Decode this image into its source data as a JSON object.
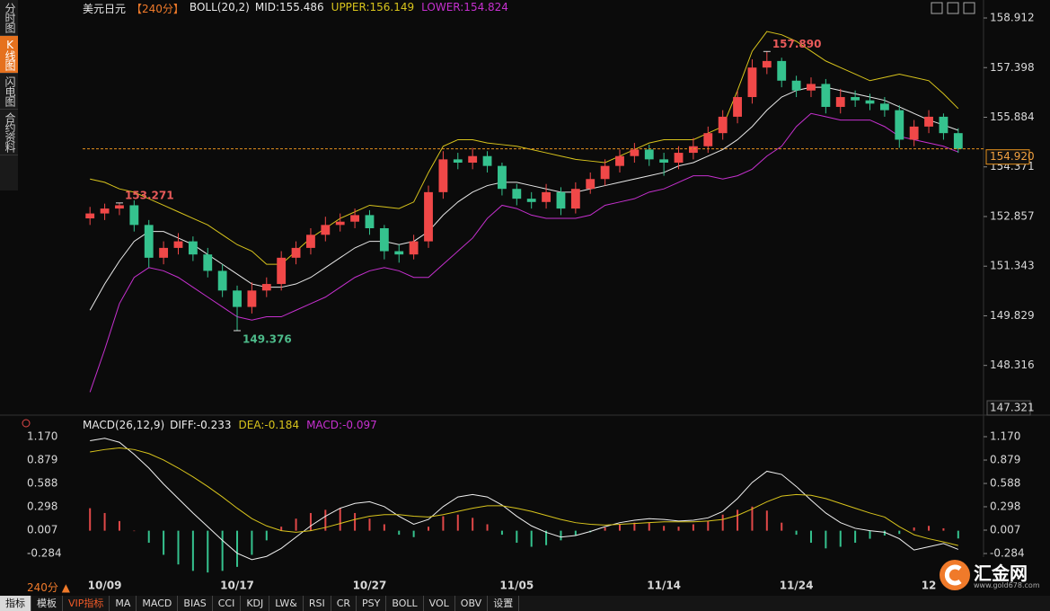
{
  "sidebar": {
    "tabs": [
      "分时图",
      "K线图",
      "闪电图",
      "合约资料"
    ]
  },
  "chart_data": [
    {
      "type": "candlestick",
      "title": "美元日元",
      "period": "【240分】",
      "indicator": "BOLL(20,2)",
      "categories": [
        null,
        "10/09",
        null,
        null,
        null,
        null,
        null,
        null,
        null,
        null,
        "10/17",
        null,
        null,
        null,
        null,
        null,
        null,
        null,
        null,
        "10/27",
        null,
        null,
        null,
        null,
        null,
        null,
        null,
        null,
        null,
        "11/05",
        null,
        null,
        null,
        null,
        null,
        null,
        null,
        null,
        null,
        "11/14",
        null,
        null,
        null,
        null,
        null,
        null,
        null,
        null,
        "11/24",
        null,
        null,
        null,
        null,
        null,
        null,
        null,
        null,
        "12",
        null,
        null
      ],
      "open": [
        152.8,
        152.95,
        153.1,
        153.2,
        152.6,
        151.6,
        151.9,
        152.1,
        151.7,
        151.2,
        150.6,
        150.1,
        150.6,
        150.8,
        151.6,
        151.9,
        152.3,
        152.6,
        152.7,
        152.9,
        152.5,
        151.8,
        151.7,
        152.1,
        153.6,
        154.6,
        154.5,
        154.7,
        154.4,
        153.7,
        153.4,
        153.3,
        153.6,
        153.1,
        153.7,
        154.0,
        154.4,
        154.7,
        154.9,
        154.6,
        154.5,
        154.8,
        155.0,
        155.4,
        155.9,
        156.5,
        157.4,
        157.6,
        157.0,
        156.7,
        156.9,
        156.2,
        156.5,
        156.4,
        156.3,
        156.1,
        155.2,
        155.6,
        155.9,
        155.4
      ],
      "high": [
        153.15,
        153.25,
        153.271,
        153.35,
        152.75,
        152.1,
        152.35,
        152.25,
        151.9,
        151.4,
        150.75,
        150.85,
        151.0,
        151.8,
        152.1,
        152.5,
        152.85,
        152.95,
        153.1,
        153.05,
        152.6,
        152.0,
        152.3,
        153.8,
        154.85,
        154.8,
        154.95,
        154.85,
        154.5,
        153.85,
        153.6,
        153.85,
        153.75,
        153.9,
        154.2,
        154.6,
        154.9,
        155.1,
        155.05,
        154.8,
        155.0,
        155.25,
        155.6,
        156.1,
        156.7,
        157.65,
        157.89,
        157.7,
        157.15,
        157.1,
        157.05,
        156.75,
        156.7,
        156.6,
        156.5,
        156.25,
        155.8,
        156.1,
        156.0,
        155.55
      ],
      "low": [
        152.6,
        152.75,
        152.9,
        152.4,
        151.3,
        151.4,
        151.7,
        151.5,
        151.0,
        150.4,
        149.376,
        149.9,
        150.4,
        150.6,
        151.4,
        151.7,
        152.1,
        152.4,
        152.5,
        152.3,
        151.55,
        151.45,
        151.55,
        151.9,
        153.4,
        154.3,
        154.3,
        154.2,
        153.5,
        153.2,
        153.1,
        153.1,
        152.9,
        152.95,
        153.55,
        153.8,
        154.2,
        154.5,
        154.4,
        154.1,
        154.3,
        154.6,
        154.8,
        155.2,
        155.7,
        156.3,
        157.2,
        156.8,
        156.5,
        156.5,
        156.0,
        156.0,
        156.2,
        156.1,
        155.9,
        154.95,
        155.0,
        155.4,
        155.2,
        154.8
      ],
      "close": [
        152.95,
        153.1,
        153.2,
        152.6,
        151.6,
        151.9,
        152.1,
        151.7,
        151.2,
        150.6,
        150.1,
        150.6,
        150.8,
        151.6,
        151.9,
        152.3,
        152.6,
        152.7,
        152.9,
        152.5,
        151.8,
        151.7,
        152.1,
        153.6,
        154.6,
        154.5,
        154.7,
        154.4,
        153.7,
        153.4,
        153.3,
        153.6,
        153.1,
        153.7,
        154.0,
        154.4,
        154.7,
        154.9,
        154.6,
        154.5,
        154.8,
        155.0,
        155.4,
        155.9,
        156.5,
        157.4,
        157.6,
        157.0,
        156.7,
        156.9,
        156.2,
        156.5,
        156.4,
        156.3,
        156.1,
        155.2,
        155.6,
        155.9,
        155.4,
        154.92
      ],
      "up_color": "#f04848",
      "down_color": "#35c28e",
      "series": [
        {
          "label": "MID:155.486",
          "color": "#e8e8e8",
          "values": [
            150.0,
            150.8,
            151.5,
            152.1,
            152.4,
            152.4,
            152.2,
            152.0,
            151.7,
            151.4,
            151.1,
            150.8,
            150.7,
            150.7,
            150.8,
            151.0,
            151.3,
            151.6,
            151.9,
            152.1,
            152.1,
            152.0,
            152.1,
            152.4,
            152.9,
            153.3,
            153.6,
            153.8,
            153.9,
            153.9,
            153.8,
            153.7,
            153.6,
            153.6,
            153.7,
            153.8,
            153.9,
            154.0,
            154.1,
            154.2,
            154.4,
            154.5,
            154.7,
            154.9,
            155.2,
            155.6,
            156.1,
            156.5,
            156.7,
            156.8,
            156.8,
            156.7,
            156.6,
            156.5,
            156.4,
            156.2,
            156.0,
            155.8,
            155.65,
            155.486
          ]
        },
        {
          "label": "UPPER:156.149",
          "color": "#d8c41c",
          "values": [
            154.0,
            153.9,
            153.7,
            153.6,
            153.4,
            153.2,
            153.0,
            152.8,
            152.6,
            152.3,
            152.0,
            151.8,
            151.4,
            151.4,
            151.8,
            152.2,
            152.5,
            152.8,
            153.0,
            153.2,
            153.15,
            153.1,
            153.3,
            154.2,
            155.0,
            155.2,
            155.2,
            155.1,
            155.05,
            155.0,
            154.9,
            154.8,
            154.7,
            154.6,
            154.55,
            154.5,
            154.7,
            154.9,
            155.1,
            155.2,
            155.2,
            155.2,
            155.4,
            155.6,
            156.7,
            157.9,
            158.5,
            158.4,
            158.2,
            157.9,
            157.6,
            157.4,
            157.2,
            157.0,
            157.1,
            157.2,
            157.1,
            157.0,
            156.6,
            156.149
          ]
        },
        {
          "label": "LOWER:154.824",
          "color": "#c630cf",
          "values": [
            147.5,
            148.8,
            150.2,
            151.0,
            151.3,
            151.2,
            151.0,
            150.7,
            150.4,
            150.1,
            149.8,
            149.7,
            149.8,
            149.8,
            150.0,
            150.2,
            150.4,
            150.7,
            151.0,
            151.2,
            151.3,
            151.2,
            151.0,
            151.0,
            151.4,
            151.8,
            152.2,
            152.8,
            153.2,
            153.1,
            152.9,
            152.8,
            152.8,
            152.8,
            152.9,
            153.2,
            153.3,
            153.4,
            153.6,
            153.7,
            153.9,
            154.1,
            154.1,
            154.0,
            154.1,
            154.3,
            154.7,
            155.0,
            155.6,
            156.0,
            155.9,
            155.8,
            155.8,
            155.8,
            155.6,
            155.3,
            155.2,
            155.1,
            155.0,
            154.824
          ]
        }
      ],
      "ylim": [
        147.321,
        158.912
      ],
      "yticks": [
        158.912,
        157.398,
        155.884,
        154.371,
        152.857,
        151.343,
        149.829,
        148.316
      ],
      "last_price": {
        "value": 154.92,
        "label": "154.920"
      },
      "annotations": [
        {
          "value": 153.271,
          "label": "153.271"
        },
        {
          "value": 157.89,
          "label": "157.890"
        },
        {
          "value": 149.376,
          "label": "149.376"
        }
      ]
    },
    {
      "type": "macd",
      "title": "MACD(26,12,9)",
      "series": [
        {
          "label": "DIFF:-0.233",
          "color": "#f0f0f0",
          "values": [
            1.12,
            1.15,
            1.1,
            0.95,
            0.78,
            0.58,
            0.4,
            0.22,
            0.05,
            -0.12,
            -0.28,
            -0.36,
            -0.32,
            -0.22,
            -0.08,
            0.06,
            0.18,
            0.28,
            0.34,
            0.36,
            0.3,
            0.18,
            0.08,
            0.14,
            0.3,
            0.42,
            0.45,
            0.42,
            0.32,
            0.18,
            0.06,
            -0.02,
            -0.08,
            -0.06,
            -0.01,
            0.05,
            0.1,
            0.13,
            0.15,
            0.14,
            0.12,
            0.13,
            0.16,
            0.24,
            0.4,
            0.6,
            0.74,
            0.7,
            0.55,
            0.38,
            0.22,
            0.1,
            0.03,
            0.0,
            -0.02,
            -0.1,
            -0.24,
            -0.2,
            -0.16,
            -0.233
          ]
        },
        {
          "label": "DEA:-0.184",
          "color": "#d8c41c",
          "values": [
            0.98,
            1.01,
            1.03,
            1.01,
            0.96,
            0.88,
            0.78,
            0.67,
            0.55,
            0.42,
            0.28,
            0.15,
            0.06,
            0.0,
            -0.02,
            0.0,
            0.04,
            0.09,
            0.14,
            0.18,
            0.2,
            0.2,
            0.18,
            0.17,
            0.2,
            0.24,
            0.28,
            0.31,
            0.31,
            0.28,
            0.24,
            0.19,
            0.14,
            0.1,
            0.08,
            0.07,
            0.08,
            0.09,
            0.1,
            0.11,
            0.11,
            0.11,
            0.12,
            0.14,
            0.19,
            0.27,
            0.36,
            0.43,
            0.45,
            0.44,
            0.4,
            0.34,
            0.28,
            0.22,
            0.17,
            0.05,
            -0.05,
            -0.1,
            -0.14,
            -0.184
          ]
        }
      ],
      "histogram": {
        "label": "MACD:-0.097",
        "color": "#c630cf",
        "up_color": "#e04848",
        "down_color": "#35c28e",
        "values": [
          0.28,
          0.22,
          0.12,
          0.0,
          -0.15,
          -0.3,
          -0.42,
          -0.5,
          -0.52,
          -0.5,
          -0.45,
          -0.3,
          -0.12,
          0.05,
          0.15,
          0.22,
          0.26,
          0.28,
          0.22,
          0.15,
          0.08,
          -0.05,
          -0.08,
          0.05,
          0.18,
          0.2,
          0.16,
          0.08,
          -0.05,
          -0.15,
          -0.2,
          -0.18,
          -0.12,
          -0.06,
          -0.02,
          0.04,
          0.08,
          0.1,
          0.1,
          0.06,
          0.05,
          0.08,
          0.12,
          0.2,
          0.26,
          0.3,
          0.25,
          0.1,
          -0.05,
          -0.15,
          -0.22,
          -0.2,
          -0.15,
          -0.1,
          -0.06,
          -0.04,
          0.04,
          0.06,
          0.03,
          -0.097
        ]
      },
      "ylim": [
        -0.608,
        1.17
      ],
      "yticks": [
        {
          "value": 1.17,
          "label": "1.170"
        },
        0.879,
        0.588,
        0.298,
        0.007,
        -0.284
      ]
    }
  ],
  "footer": {
    "period": "240分 ▲",
    "tabs": [
      "指标",
      "模板",
      "VIP指标",
      "MA",
      "MACD",
      "BIAS",
      "CCI",
      "KDJ",
      "LW&",
      "RSI",
      "CR",
      "PSY",
      "BOLL",
      "VOL",
      "OBV",
      "设置"
    ]
  },
  "logo": {
    "text": "汇金网",
    "url": "www.gold678.com"
  }
}
